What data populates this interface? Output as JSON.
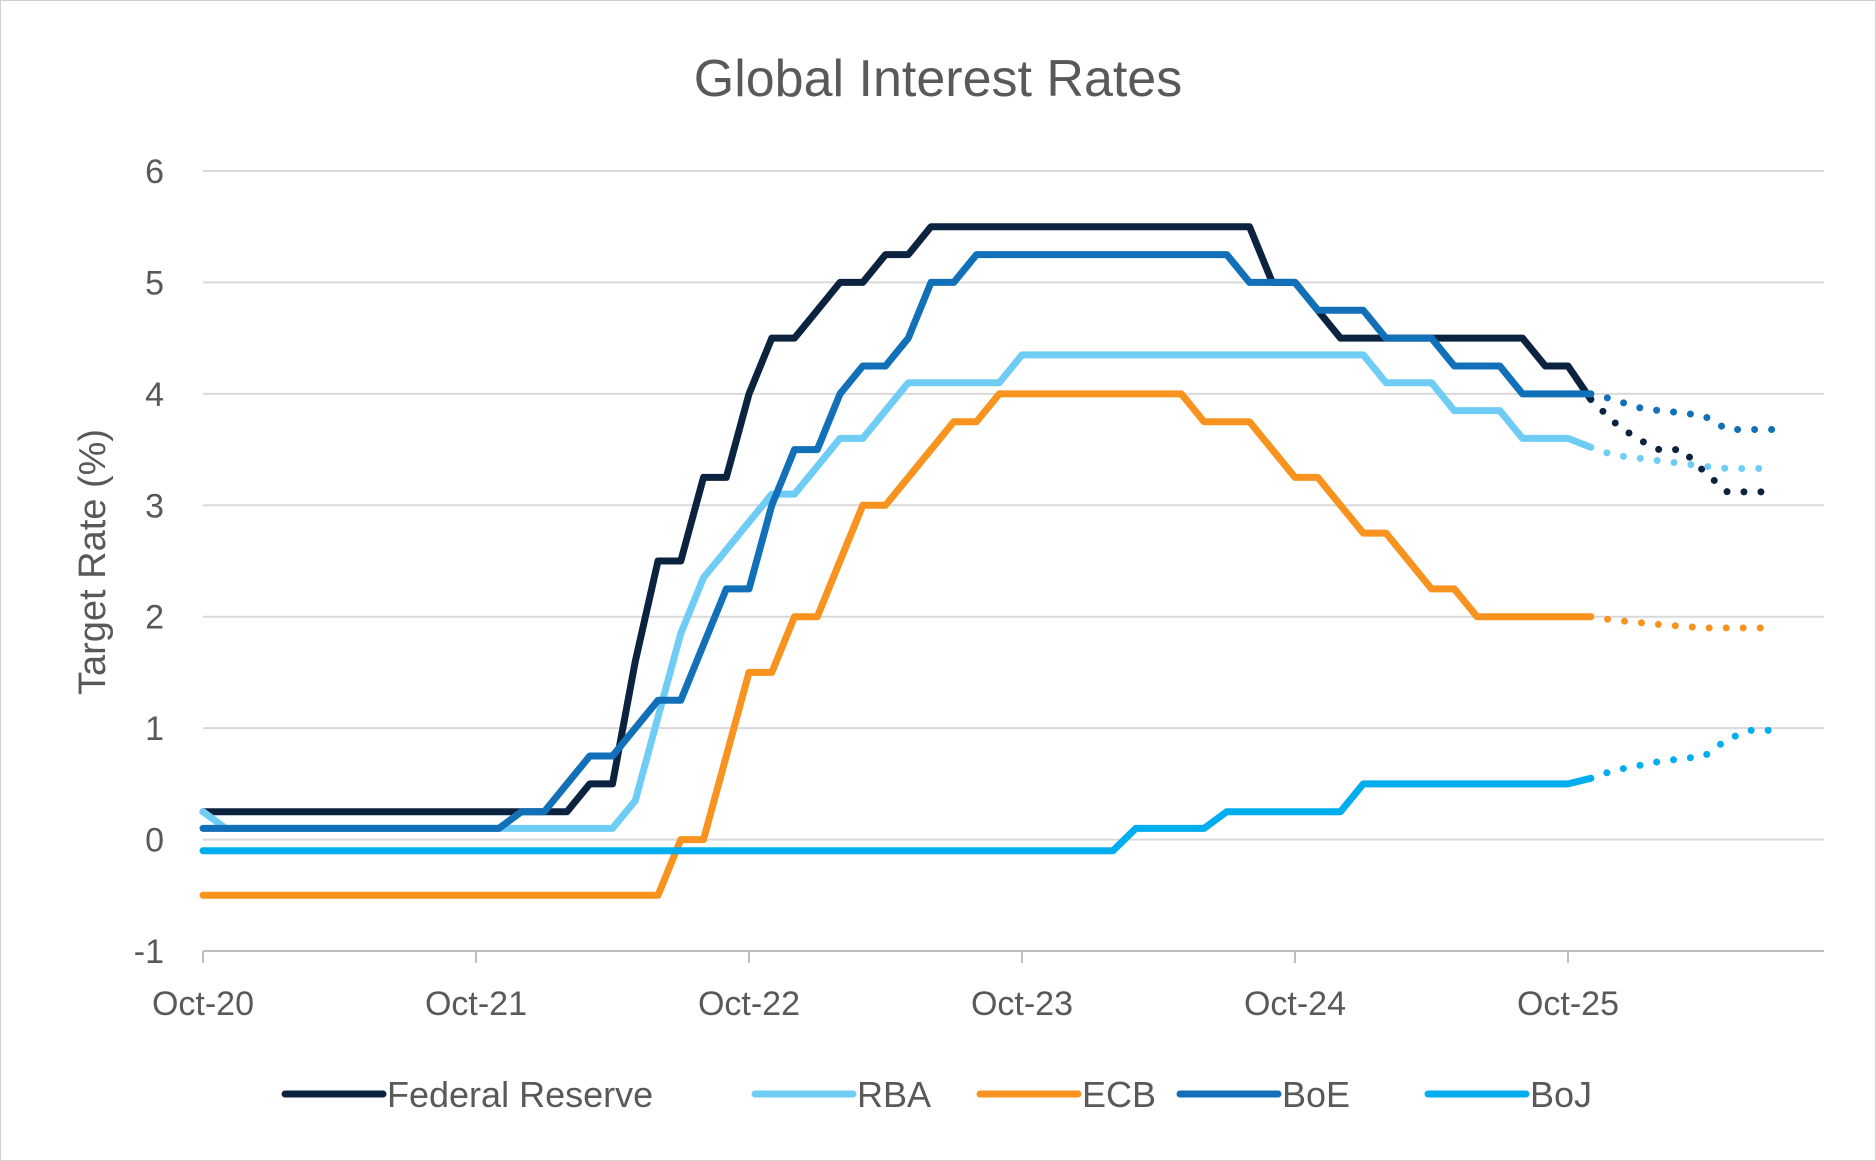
{
  "chart_data": {
    "type": "line",
    "title": "Global Interest Rates",
    "xlabel": "",
    "ylabel": "Target Rate (%)",
    "ylim": [
      -1,
      6
    ],
    "yticks": [
      "-1",
      "0",
      "1",
      "2",
      "3",
      "4",
      "5",
      "6"
    ],
    "xticks": [
      {
        "t": 0,
        "label": "Oct-20"
      },
      {
        "t": 12,
        "label": "Oct-21"
      },
      {
        "t": 24,
        "label": "Oct-22"
      },
      {
        "t": 36,
        "label": "Oct-23"
      },
      {
        "t": 48,
        "label": "Oct-24"
      },
      {
        "t": 60,
        "label": "Oct-25"
      }
    ],
    "xlim": [
      0,
      71
    ],
    "x_unit": "months since Oct-20",
    "series": [
      {
        "name": "Federal Reserve",
        "color": "#0c2340",
        "values": [
          [
            0,
            0.25
          ],
          [
            16,
            0.25
          ],
          [
            17,
            0.5
          ],
          [
            18,
            0.5
          ],
          [
            19,
            1.6
          ],
          [
            20,
            2.5
          ],
          [
            21,
            2.5
          ],
          [
            22,
            3.25
          ],
          [
            23,
            3.25
          ],
          [
            24,
            4.0
          ],
          [
            25,
            4.5
          ],
          [
            26,
            4.5
          ],
          [
            27,
            4.75
          ],
          [
            28,
            5.0
          ],
          [
            29,
            5.0
          ],
          [
            30,
            5.25
          ],
          [
            31,
            5.25
          ],
          [
            32,
            5.5
          ],
          [
            46,
            5.5
          ],
          [
            47,
            5.0
          ],
          [
            48,
            5.0
          ],
          [
            49,
            4.75
          ],
          [
            50,
            4.5
          ],
          [
            52,
            4.5
          ],
          [
            58,
            4.5
          ],
          [
            59,
            4.25
          ],
          [
            60,
            4.25
          ],
          [
            61,
            3.95
          ]
        ],
        "forecast": [
          [
            61,
            3.95
          ],
          [
            62,
            3.75
          ],
          [
            63,
            3.6
          ],
          [
            64,
            3.5
          ],
          [
            65,
            3.5
          ],
          [
            66,
            3.3
          ],
          [
            67,
            3.12
          ],
          [
            69,
            3.12
          ]
        ]
      },
      {
        "name": "RBA",
        "color": "#6fcdf5",
        "values": [
          [
            0,
            0.25
          ],
          [
            1,
            0.1
          ],
          [
            18,
            0.1
          ],
          [
            19,
            0.35
          ],
          [
            20,
            1.1
          ],
          [
            21,
            1.85
          ],
          [
            22,
            2.35
          ],
          [
            23,
            2.6
          ],
          [
            24,
            2.85
          ],
          [
            25,
            3.1
          ],
          [
            26,
            3.1
          ],
          [
            27,
            3.35
          ],
          [
            28,
            3.6
          ],
          [
            29,
            3.6
          ],
          [
            30,
            3.85
          ],
          [
            31,
            4.1
          ],
          [
            35,
            4.1
          ],
          [
            36,
            4.35
          ],
          [
            51,
            4.35
          ],
          [
            52,
            4.1
          ],
          [
            54,
            4.1
          ],
          [
            55,
            3.85
          ],
          [
            57,
            3.85
          ],
          [
            58,
            3.6
          ],
          [
            60,
            3.6
          ],
          [
            61,
            3.52
          ]
        ],
        "forecast": [
          [
            61,
            3.52
          ],
          [
            62,
            3.45
          ],
          [
            64,
            3.4
          ],
          [
            66,
            3.35
          ],
          [
            67,
            3.33
          ],
          [
            69,
            3.33
          ]
        ]
      },
      {
        "name": "ECB",
        "color": "#f7931e",
        "values": [
          [
            0,
            -0.5
          ],
          [
            20,
            -0.5
          ],
          [
            21,
            0
          ],
          [
            22,
            0
          ],
          [
            23,
            0.75
          ],
          [
            24,
            1.5
          ],
          [
            25,
            1.5
          ],
          [
            26,
            2.0
          ],
          [
            27,
            2.0
          ],
          [
            28,
            2.5
          ],
          [
            29,
            3.0
          ],
          [
            30,
            3.0
          ],
          [
            31,
            3.25
          ],
          [
            32,
            3.5
          ],
          [
            33,
            3.75
          ],
          [
            34,
            3.75
          ],
          [
            35,
            4.0
          ],
          [
            43,
            4.0
          ],
          [
            44,
            3.75
          ],
          [
            46,
            3.75
          ],
          [
            47,
            3.5
          ],
          [
            48,
            3.25
          ],
          [
            49,
            3.25
          ],
          [
            50,
            3.0
          ],
          [
            51,
            2.75
          ],
          [
            52,
            2.75
          ],
          [
            53,
            2.5
          ],
          [
            54,
            2.25
          ],
          [
            55,
            2.25
          ],
          [
            56,
            2.0
          ],
          [
            61,
            2.0
          ]
        ],
        "forecast": [
          [
            61,
            2.0
          ],
          [
            62,
            1.97
          ],
          [
            64,
            1.93
          ],
          [
            66,
            1.9
          ],
          [
            69,
            1.9
          ]
        ]
      },
      {
        "name": "BoE",
        "color": "#1170b8",
        "values": [
          [
            0,
            0.1
          ],
          [
            13,
            0.1
          ],
          [
            14,
            0.25
          ],
          [
            15,
            0.25
          ],
          [
            16,
            0.5
          ],
          [
            17,
            0.75
          ],
          [
            18,
            0.75
          ],
          [
            19,
            1.0
          ],
          [
            20,
            1.25
          ],
          [
            21,
            1.25
          ],
          [
            22,
            1.75
          ],
          [
            23,
            2.25
          ],
          [
            24,
            2.25
          ],
          [
            25,
            3.0
          ],
          [
            26,
            3.5
          ],
          [
            27,
            3.5
          ],
          [
            28,
            4.0
          ],
          [
            29,
            4.25
          ],
          [
            30,
            4.25
          ],
          [
            31,
            4.5
          ],
          [
            32,
            5.0
          ],
          [
            33,
            5.0
          ],
          [
            34,
            5.25
          ],
          [
            45,
            5.25
          ],
          [
            46,
            5.0
          ],
          [
            48,
            5.0
          ],
          [
            49,
            4.75
          ],
          [
            51,
            4.75
          ],
          [
            52,
            4.5
          ],
          [
            54,
            4.5
          ],
          [
            55,
            4.25
          ],
          [
            57,
            4.25
          ],
          [
            58,
            4.0
          ],
          [
            61,
            4.0
          ]
        ],
        "forecast": [
          [
            61,
            4.0
          ],
          [
            62,
            3.95
          ],
          [
            63,
            3.88
          ],
          [
            64,
            3.85
          ],
          [
            65,
            3.83
          ],
          [
            66,
            3.8
          ],
          [
            67,
            3.68
          ],
          [
            69,
            3.68
          ]
        ]
      },
      {
        "name": "BoJ",
        "color": "#00aeef",
        "values": [
          [
            0,
            -0.1
          ],
          [
            40,
            -0.1
          ],
          [
            41,
            0.1
          ],
          [
            44,
            0.1
          ],
          [
            45,
            0.25
          ],
          [
            50,
            0.25
          ],
          [
            51,
            0.5
          ],
          [
            60,
            0.5
          ],
          [
            61,
            0.55
          ]
        ],
        "forecast": [
          [
            61,
            0.55
          ],
          [
            62,
            0.62
          ],
          [
            64,
            0.7
          ],
          [
            66,
            0.75
          ],
          [
            67,
            0.9
          ],
          [
            68,
            0.98
          ],
          [
            69,
            0.98
          ]
        ]
      }
    ]
  }
}
